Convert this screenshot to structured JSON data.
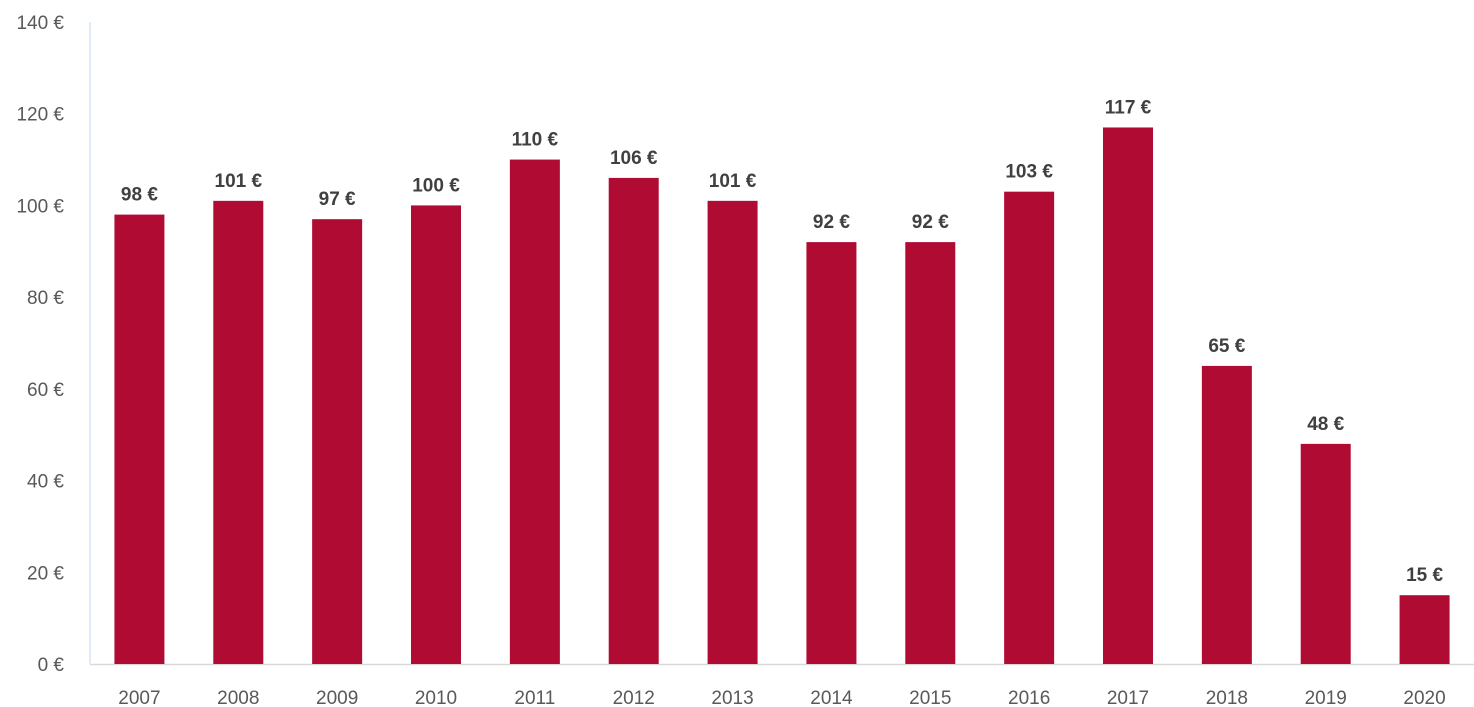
{
  "chart_data": {
    "type": "bar",
    "title": "",
    "xlabel": "",
    "ylabel": "",
    "categories": [
      "2007",
      "2008",
      "2009",
      "2010",
      "2011",
      "2012",
      "2013",
      "2014",
      "2015",
      "2016",
      "2017",
      "2018",
      "2019",
      "2020"
    ],
    "values": [
      98,
      101,
      97,
      100,
      110,
      106,
      101,
      92,
      92,
      103,
      117,
      65,
      48,
      15
    ],
    "data_labels": [
      "98 €",
      "101 €",
      "97 €",
      "100 €",
      "110 €",
      "106 €",
      "101 €",
      "92 €",
      "92 €",
      "103 €",
      "117 €",
      "65 €",
      "48 €",
      "15 €"
    ],
    "ylim": [
      0,
      140
    ],
    "yticks": [
      0,
      20,
      40,
      60,
      80,
      100,
      120,
      140
    ],
    "ytick_labels": [
      "0 €",
      "20 €",
      "40 €",
      "60 €",
      "80 €",
      "100 €",
      "120 €",
      "140 €"
    ],
    "grid": false,
    "legend": "none",
    "bar_color": "#B00B32",
    "axis_color": "#BDD7EE",
    "baseline_color": "#D9D9D9"
  }
}
